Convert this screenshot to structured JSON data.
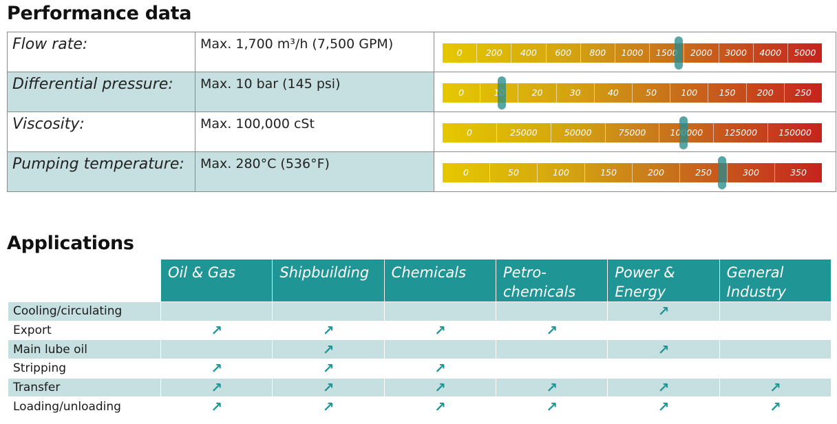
{
  "performance": {
    "title": "Performance data",
    "rows": [
      {
        "label": "Flow rate:",
        "value": "Max. 1,700 m³/h (7,500 GPM)",
        "scale": [
          "0",
          "200",
          "400",
          "600",
          "800",
          "1000",
          "1500",
          "2000",
          "3000",
          "4000",
          "5000"
        ],
        "marker_level": 0.623,
        "shaded": false
      },
      {
        "label": "Differential pressure:",
        "value": "Max. 10 bar (145 psi)",
        "scale": [
          "0",
          "10",
          "20",
          "30",
          "40",
          "50",
          "100",
          "150",
          "200",
          "250"
        ],
        "marker_level": 0.156,
        "shaded": true
      },
      {
        "label": "Viscosity:",
        "value": "Max. 100,000 cSt",
        "scale": [
          "0",
          "25000",
          "50000",
          "75000",
          "100000",
          "125000",
          "150000"
        ],
        "marker_level": 0.635,
        "shaded": false
      },
      {
        "label": "Pumping temperature:",
        "value": "Max. 280°C (536°F)",
        "scale": [
          "0",
          "50",
          "100",
          "150",
          "200",
          "250",
          "300",
          "350"
        ],
        "marker_level": 0.737,
        "shaded": true
      }
    ]
  },
  "applications": {
    "title": "Applications",
    "industries": [
      "Oil & Gas",
      "Shipbuilding",
      "Chemicals",
      "Petro-\nchemicals",
      "Power &\nEnergy",
      "General\nIndustry"
    ],
    "mark_symbol": "↗",
    "rows": [
      {
        "label": "Cooling/circulating",
        "marks": [
          false,
          false,
          false,
          false,
          true,
          false
        ]
      },
      {
        "label": "Export",
        "marks": [
          true,
          true,
          true,
          true,
          false,
          false
        ]
      },
      {
        "label": "Main lube oil",
        "marks": [
          false,
          true,
          false,
          false,
          true,
          false
        ]
      },
      {
        "label": "Stripping",
        "marks": [
          true,
          true,
          true,
          false,
          false,
          false
        ]
      },
      {
        "label": "Transfer",
        "marks": [
          true,
          true,
          true,
          true,
          true,
          true
        ]
      },
      {
        "label": "Loading/unloading",
        "marks": [
          true,
          true,
          true,
          true,
          true,
          true
        ]
      }
    ]
  },
  "colors": {
    "teal": "#209596",
    "light_teal": "#c6dfe0",
    "gauge_start": "#e5c800",
    "gauge_end": "#c5231d",
    "marker": "#288c8c"
  }
}
